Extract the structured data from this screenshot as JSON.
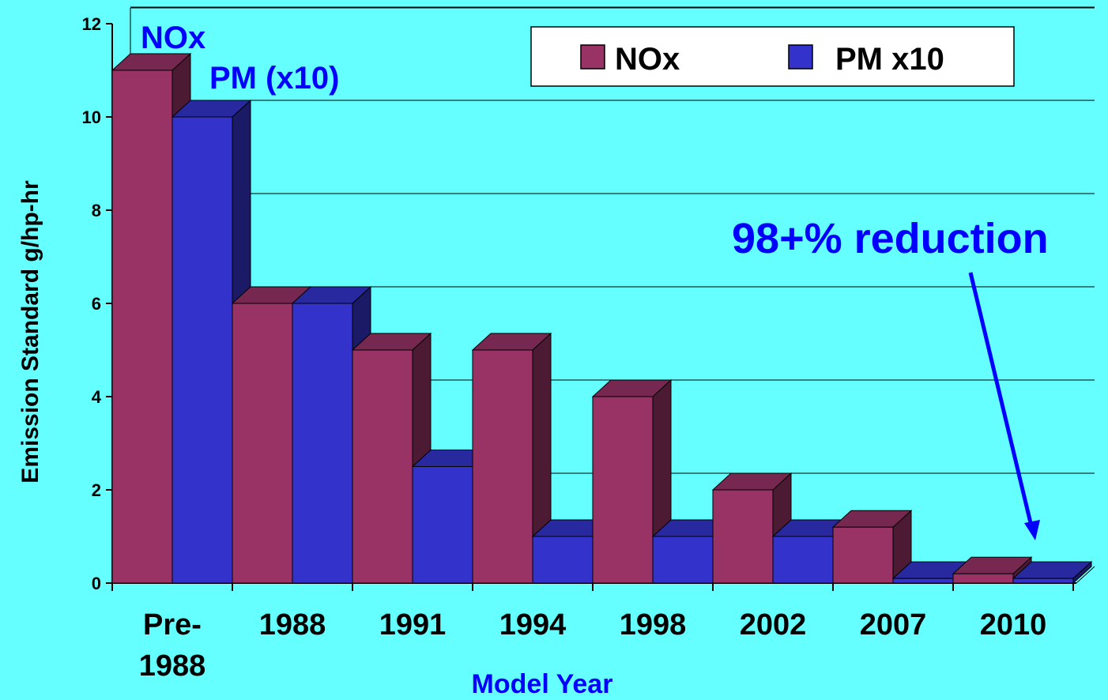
{
  "chart_data": {
    "type": "bar",
    "xlabel": "Model Year",
    "ylabel": "Emission Standard g/hp-hr",
    "ylim": [
      0,
      12
    ],
    "yticks": [
      0,
      2,
      4,
      6,
      8,
      10,
      12
    ],
    "grid": true,
    "legend_position": "top-right",
    "categories": [
      {
        "line1": "Pre-",
        "line2": "1988"
      },
      {
        "line1": "1988",
        "line2": ""
      },
      {
        "line1": "1991",
        "line2": ""
      },
      {
        "line1": "1994",
        "line2": ""
      },
      {
        "line1": "1998",
        "line2": ""
      },
      {
        "line1": "2002",
        "line2": ""
      },
      {
        "line1": "2007",
        "line2": ""
      },
      {
        "line1": "2010",
        "line2": ""
      }
    ],
    "series": [
      {
        "name": "NOx",
        "color": "#993366",
        "values": [
          11,
          6,
          5,
          5,
          4,
          2,
          1.2,
          0.2
        ]
      },
      {
        "name": "PM x10",
        "color": "#3333cc",
        "values": [
          10,
          6,
          2.5,
          1,
          1,
          1,
          0.1,
          0.1
        ]
      }
    ],
    "annotations": {
      "nox": "NOx",
      "pm": "PM (x10)",
      "reduction": "98+% reduction"
    }
  }
}
